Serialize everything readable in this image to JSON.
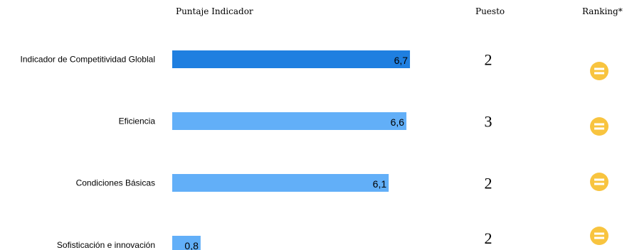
{
  "headers": {
    "score": "Puntaje Indicador",
    "rank": "Puesto",
    "trend": "Ranking*"
  },
  "chart_data": {
    "type": "bar",
    "orientation": "horizontal",
    "categories": [
      "Indicador de Competitividad Globlal",
      "Eficiencia",
      "Condiciones Básicas",
      "Sofisticación e innovación"
    ],
    "values": [
      6.7,
      6.6,
      6.1,
      0.8
    ],
    "value_labels": [
      "6,7",
      "6,6",
      "6,1",
      "0,8"
    ],
    "xlim": [
      0,
      7
    ],
    "grid": false,
    "legend": "none",
    "colors": [
      "#1f7fe0",
      "#62aff8",
      "#62aff8",
      "#62aff8"
    ],
    "ranks": [
      "2",
      "3",
      "2",
      "2"
    ],
    "trend_icon": "equal-icon",
    "trend_color": "#f8c43f"
  }
}
